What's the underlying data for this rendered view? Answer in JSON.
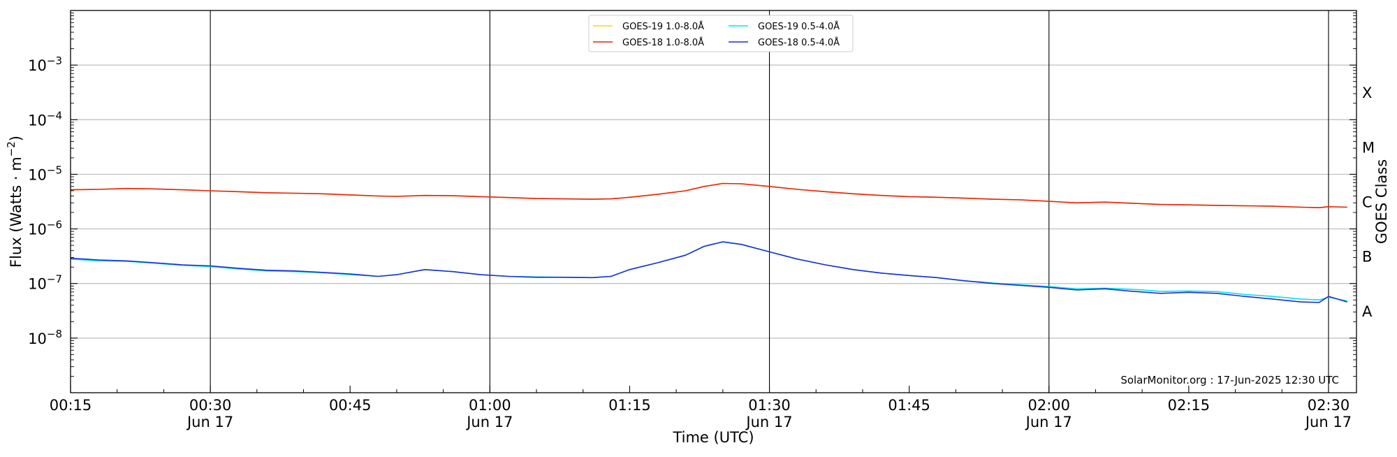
{
  "chart_data": {
    "type": "line",
    "title": "",
    "xlabel": "Time (UTC)",
    "ylabel_prefix": "Flux (Watts · m",
    "ylabel_exp": "−2",
    "ylabel_suffix": ")",
    "y2label": "GOES Class",
    "yscale": "log",
    "ylim": [
      1e-09,
      0.01
    ],
    "xlim": [
      "00:15",
      "02:33"
    ],
    "grid": "horizontal at decades",
    "legend_position": "top-center",
    "credit": "SolarMonitor.org : 17-Jun-2025 12:30 UTC",
    "x_ticks": [
      {
        "t": "00:15",
        "time": "00:15",
        "date": ""
      },
      {
        "t": "00:30",
        "time": "00:30",
        "date": "Jun 17"
      },
      {
        "t": "00:45",
        "time": "00:45",
        "date": ""
      },
      {
        "t": "01:00",
        "time": "01:00",
        "date": "Jun 17"
      },
      {
        "t": "01:15",
        "time": "01:15",
        "date": ""
      },
      {
        "t": "01:30",
        "time": "01:30",
        "date": "Jun 17"
      },
      {
        "t": "01:45",
        "time": "01:45",
        "date": ""
      },
      {
        "t": "02:00",
        "time": "02:00",
        "date": "Jun 17"
      },
      {
        "t": "02:15",
        "time": "02:15",
        "date": ""
      },
      {
        "t": "02:30",
        "time": "02:30",
        "date": "Jun 17"
      }
    ],
    "vertical_lines": [
      "00:30",
      "01:00",
      "01:30",
      "02:00",
      "02:30"
    ],
    "y_ticks": [
      {
        "value": 1e-08,
        "base": "10",
        "exp": "−8"
      },
      {
        "value": 1e-07,
        "base": "10",
        "exp": "−7"
      },
      {
        "value": 1e-06,
        "base": "10",
        "exp": "−6"
      },
      {
        "value": 1e-05,
        "base": "10",
        "exp": "−5"
      },
      {
        "value": 0.0001,
        "base": "10",
        "exp": "−4"
      },
      {
        "value": 0.001,
        "base": "10",
        "exp": "−3"
      }
    ],
    "goes_classes": [
      {
        "label": "A",
        "value": 3.16e-08
      },
      {
        "label": "B",
        "value": 3.16e-07
      },
      {
        "label": "C",
        "value": 3.16e-06
      },
      {
        "label": "M",
        "value": 3.16e-05
      },
      {
        "label": "X",
        "value": 0.000316
      }
    ],
    "series": [
      {
        "name": "GOES-19 1.0-8.0Å",
        "color": "#ffd700",
        "x": [
          "00:15",
          "00:18",
          "00:21",
          "00:24",
          "00:27",
          "00:30",
          "00:33",
          "00:36",
          "00:39",
          "00:42",
          "00:45",
          "00:48",
          "00:50",
          "00:53",
          "00:56",
          "00:59",
          "01:02",
          "01:05",
          "01:08",
          "01:11",
          "01:13",
          "01:15",
          "01:18",
          "01:21",
          "01:23",
          "01:25",
          "01:27",
          "01:30",
          "01:33",
          "01:36",
          "01:39",
          "01:42",
          "01:45",
          "01:48",
          "01:51",
          "01:54",
          "01:57",
          "02:00",
          "02:03",
          "02:06",
          "02:09",
          "02:12",
          "02:15",
          "02:18",
          "02:21",
          "02:24",
          "02:27",
          "02:29",
          "02:30",
          "02:32"
        ],
        "y": [
          5.2e-06,
          5.3e-06,
          5.5e-06,
          5.4e-06,
          5.2e-06,
          5e-06,
          4.8e-06,
          4.6e-06,
          4.5e-06,
          4.4e-06,
          4.2e-06,
          4e-06,
          3.95e-06,
          4.1e-06,
          4.05e-06,
          3.9e-06,
          3.75e-06,
          3.6e-06,
          3.55e-06,
          3.5e-06,
          3.55e-06,
          3.8e-06,
          4.3e-06,
          5e-06,
          6e-06,
          6.8e-06,
          6.7e-06,
          6e-06,
          5.3e-06,
          4.8e-06,
          4.4e-06,
          4.1e-06,
          3.9e-06,
          3.8e-06,
          3.65e-06,
          3.5e-06,
          3.4e-06,
          3.2e-06,
          3e-06,
          3.1e-06,
          2.95e-06,
          2.8e-06,
          2.75e-06,
          2.7e-06,
          2.65e-06,
          2.6e-06,
          2.5e-06,
          2.45e-06,
          2.55e-06,
          2.5e-06
        ]
      },
      {
        "name": "GOES-18 1.0-8.0Å",
        "color": "#e8210f",
        "x": [
          "00:15",
          "00:18",
          "00:21",
          "00:24",
          "00:27",
          "00:30",
          "00:33",
          "00:36",
          "00:39",
          "00:42",
          "00:45",
          "00:48",
          "00:50",
          "00:53",
          "00:56",
          "00:59",
          "01:02",
          "01:05",
          "01:08",
          "01:11",
          "01:13",
          "01:15",
          "01:18",
          "01:21",
          "01:23",
          "01:25",
          "01:27",
          "01:30",
          "01:33",
          "01:36",
          "01:39",
          "01:42",
          "01:45",
          "01:48",
          "01:51",
          "01:54",
          "01:57",
          "02:00",
          "02:03",
          "02:06",
          "02:09",
          "02:12",
          "02:15",
          "02:18",
          "02:21",
          "02:24",
          "02:27",
          "02:29",
          "02:30",
          "02:32"
        ],
        "y": [
          5.2e-06,
          5.3e-06,
          5.5e-06,
          5.4e-06,
          5.2e-06,
          5e-06,
          4.8e-06,
          4.6e-06,
          4.5e-06,
          4.4e-06,
          4.2e-06,
          4e-06,
          3.95e-06,
          4.1e-06,
          4.05e-06,
          3.9e-06,
          3.75e-06,
          3.6e-06,
          3.55e-06,
          3.5e-06,
          3.55e-06,
          3.8e-06,
          4.3e-06,
          5e-06,
          6e-06,
          6.8e-06,
          6.7e-06,
          6e-06,
          5.3e-06,
          4.8e-06,
          4.4e-06,
          4.1e-06,
          3.9e-06,
          3.8e-06,
          3.65e-06,
          3.5e-06,
          3.4e-06,
          3.2e-06,
          3e-06,
          3.1e-06,
          2.95e-06,
          2.8e-06,
          2.75e-06,
          2.7e-06,
          2.65e-06,
          2.6e-06,
          2.5e-06,
          2.45e-06,
          2.55e-06,
          2.5e-06
        ]
      },
      {
        "name": "GOES-19 0.5-4.0Å",
        "color": "#00e5ee",
        "x": [
          "00:15",
          "00:18",
          "00:21",
          "00:24",
          "00:27",
          "00:30",
          "00:33",
          "00:36",
          "00:39",
          "00:42",
          "00:45",
          "00:48",
          "00:50",
          "00:53",
          "00:56",
          "00:59",
          "01:02",
          "01:05",
          "01:08",
          "01:11",
          "01:13",
          "01:15",
          "01:18",
          "01:21",
          "01:23",
          "01:25",
          "01:27",
          "01:30",
          "01:33",
          "01:36",
          "01:39",
          "01:42",
          "01:45",
          "01:48",
          "01:51",
          "01:54",
          "01:57",
          "02:00",
          "02:03",
          "02:06",
          "02:09",
          "02:12",
          "02:15",
          "02:18",
          "02:21",
          "02:24",
          "02:27",
          "02:29",
          "02:30",
          "02:32"
        ],
        "y": [
          2.8e-07,
          2.6e-07,
          2.55e-07,
          2.35e-07,
          2.15e-07,
          2.05e-07,
          1.85e-07,
          1.7e-07,
          1.65e-07,
          1.58e-07,
          1.45e-07,
          1.35e-07,
          1.45e-07,
          1.8e-07,
          1.65e-07,
          1.45e-07,
          1.35e-07,
          1.32e-07,
          1.3e-07,
          1.28e-07,
          1.35e-07,
          1.8e-07,
          2.4e-07,
          3.3e-07,
          4.8e-07,
          5.8e-07,
          5.2e-07,
          3.8e-07,
          2.8e-07,
          2.2e-07,
          1.8e-07,
          1.55e-07,
          1.4e-07,
          1.28e-07,
          1.12e-07,
          1.02e-07,
          9.5e-08,
          8.8e-08,
          8e-08,
          8.2e-08,
          7.8e-08,
          7.2e-08,
          7.3e-08,
          7.1e-08,
          6.3e-08,
          5.8e-08,
          5.2e-08,
          5e-08,
          5.6e-08,
          4.8e-08
        ]
      },
      {
        "name": "GOES-18 0.5-4.0Å",
        "color": "#1f2fd1",
        "x": [
          "00:15",
          "00:18",
          "00:21",
          "00:24",
          "00:27",
          "00:30",
          "00:33",
          "00:36",
          "00:39",
          "00:42",
          "00:45",
          "00:48",
          "00:50",
          "00:53",
          "00:56",
          "00:59",
          "01:02",
          "01:05",
          "01:08",
          "01:11",
          "01:13",
          "01:15",
          "01:18",
          "01:21",
          "01:23",
          "01:25",
          "01:27",
          "01:30",
          "01:33",
          "01:36",
          "01:39",
          "01:42",
          "01:45",
          "01:48",
          "01:51",
          "01:54",
          "01:57",
          "02:00",
          "02:03",
          "02:06",
          "02:09",
          "02:12",
          "02:15",
          "02:18",
          "02:21",
          "02:24",
          "02:27",
          "02:29",
          "02:30",
          "02:32"
        ],
        "y": [
          2.9e-07,
          2.7e-07,
          2.6e-07,
          2.4e-07,
          2.2e-07,
          2.1e-07,
          1.9e-07,
          1.75e-07,
          1.7e-07,
          1.6e-07,
          1.5e-07,
          1.35e-07,
          1.45e-07,
          1.8e-07,
          1.65e-07,
          1.45e-07,
          1.35e-07,
          1.3e-07,
          1.3e-07,
          1.28e-07,
          1.35e-07,
          1.8e-07,
          2.4e-07,
          3.3e-07,
          4.8e-07,
          5.8e-07,
          5.2e-07,
          3.8e-07,
          2.8e-07,
          2.2e-07,
          1.8e-07,
          1.55e-07,
          1.4e-07,
          1.28e-07,
          1.12e-07,
          1e-07,
          9.2e-08,
          8.5e-08,
          7.6e-08,
          8e-08,
          7.2e-08,
          6.6e-08,
          6.9e-08,
          6.6e-08,
          5.8e-08,
          5.2e-08,
          4.6e-08,
          4.5e-08,
          5.8e-08,
          4.6e-08
        ]
      }
    ]
  }
}
